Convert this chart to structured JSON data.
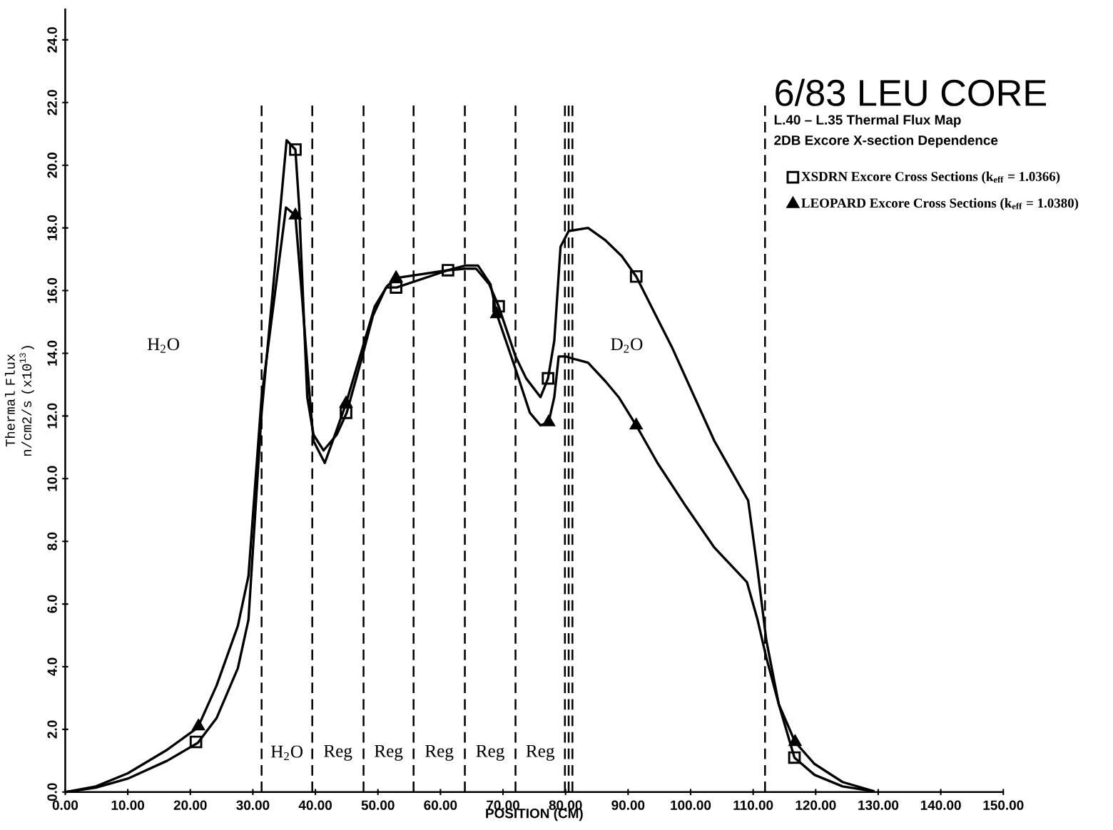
{
  "chart_data": {
    "type": "line",
    "title": "6/83 LEU CORE",
    "subtitle": "L.40 – L.35   Thermal Flux Map",
    "xlabel": "POSITION (CM)",
    "ylabel": "Thermal Flux n/cm2/s (x10$^{13}$)",
    "xlim": [
      0,
      150
    ],
    "ylim": [
      0,
      25
    ],
    "xticks": [
      {
        "value": 0,
        "label": "0.00"
      },
      {
        "value": 10,
        "label": "10.00"
      },
      {
        "value": 20,
        "label": "20.00"
      },
      {
        "value": 30,
        "label": "30.00"
      },
      {
        "value": 40,
        "label": "40.00"
      },
      {
        "value": 50,
        "label": "50.00"
      },
      {
        "value": 60,
        "label": "60.00"
      },
      {
        "value": 70,
        "label": "70.00"
      },
      {
        "value": 80,
        "label": "80.00"
      },
      {
        "value": 90,
        "label": "90.00"
      },
      {
        "value": 100,
        "label": "100.00"
      },
      {
        "value": 110,
        "label": "110.00"
      },
      {
        "value": 120,
        "label": "120.00"
      },
      {
        "value": 130,
        "label": "130.00"
      },
      {
        "value": 140,
        "label": "140.00"
      },
      {
        "value": 150,
        "label": "150.00"
      }
    ],
    "yticks": [
      {
        "value": 0,
        "label": "0.0"
      },
      {
        "value": 2,
        "label": "2.0"
      },
      {
        "value": 4,
        "label": "4.0"
      },
      {
        "value": 6,
        "label": "6.0"
      },
      {
        "value": 8,
        "label": "8.0"
      },
      {
        "value": 10,
        "label": "10.0"
      },
      {
        "value": 12,
        "label": "12.0"
      },
      {
        "value": 14,
        "label": "14.0"
      },
      {
        "value": 16,
        "label": "16.0"
      },
      {
        "value": 18,
        "label": "18.0"
      },
      {
        "value": 20,
        "label": "20.0"
      },
      {
        "value": 22,
        "label": "22.0"
      },
      {
        "value": 24,
        "label": "24.0"
      }
    ],
    "legend": "top right",
    "grid": false,
    "series": [
      {
        "type": "line",
        "marker": "none",
        "color": "#000000",
        "x": [
          0,
          4.9,
          10,
          16.3,
          21.2,
          24.2,
          27.6,
          29.3,
          31.4,
          35.4,
          36.8,
          37.4,
          38.7,
          39.7,
          41.3,
          43.4,
          45.0,
          47.5,
          49.2,
          51.3,
          53.0,
          61.2,
          64.0,
          65.7,
          67.8,
          69.3,
          72.0,
          73.7,
          76.0,
          77.2,
          78.2,
          79.2,
          80.5,
          83.6,
          86.4,
          89.0,
          91.3,
          94.2,
          97.0,
          103.8,
          109.2,
          110.7,
          112.1,
          114.1,
          116.6,
          119.8,
          124.3,
          129.4
        ],
        "values": [
          0,
          0.14,
          0.43,
          1.0,
          1.57,
          2.36,
          3.95,
          5.5,
          12.1,
          20.8,
          20.5,
          18.7,
          12.6,
          11.4,
          10.9,
          11.4,
          12.1,
          13.9,
          15.2,
          16.1,
          16.1,
          16.65,
          16.7,
          16.7,
          16.2,
          15.5,
          13.9,
          13.2,
          12.6,
          13.2,
          14.4,
          17.4,
          17.9,
          18.0,
          17.6,
          17.1,
          16.45,
          15.3,
          14.2,
          11.2,
          9.3,
          7.1,
          4.85,
          2.8,
          1.1,
          0.55,
          0.18,
          0.02
        ]
      },
      {
        "type": "line",
        "marker": "none",
        "color": "#000000",
        "x": [
          0,
          4.9,
          10,
          16.3,
          21.2,
          24.2,
          27.6,
          29.3,
          31.4,
          35.3,
          36.8,
          37.9,
          39.1,
          39.7,
          41.5,
          43.4,
          44.9,
          47.5,
          49.5,
          51.5,
          52.9,
          61.2,
          64.0,
          66.0,
          68.0,
          69.0,
          72.0,
          74.3,
          76.0,
          77.3,
          78.2,
          78.9,
          80.0,
          81.7,
          83.6,
          86.4,
          88.5,
          91.3,
          94.7,
          99.3,
          103.8,
          109.0,
          110.7,
          112.1,
          114.1,
          116.7,
          119.8,
          124.3,
          129.4
        ],
        "values": [
          0,
          0.18,
          0.6,
          1.35,
          2.06,
          3.4,
          5.3,
          6.9,
          12.6,
          18.65,
          18.4,
          15.7,
          12.6,
          11.2,
          10.5,
          11.55,
          12.4,
          14.15,
          15.5,
          16.15,
          16.4,
          16.65,
          16.8,
          16.8,
          16.2,
          15.25,
          13.5,
          12.1,
          11.7,
          11.8,
          12.6,
          13.9,
          13.9,
          13.8,
          13.7,
          13.1,
          12.6,
          11.7,
          10.5,
          9.1,
          7.8,
          6.7,
          5.5,
          4.3,
          2.8,
          1.6,
          0.9,
          0.32,
          0.02
        ]
      },
      {
        "type": "scatter",
        "marker": "square",
        "color": "#000000",
        "name": "XSDRN Excore Cross Sections (k$_{eff}$ = 1.0366)",
        "x": [
          20.9,
          36.8,
          44.9,
          52.9,
          61.2,
          69.3,
          77.2,
          91.3,
          116.6
        ],
        "values": [
          1.6,
          20.5,
          12.1,
          16.1,
          16.65,
          15.5,
          13.2,
          16.45,
          1.1
        ]
      },
      {
        "type": "scatter",
        "marker": "triangle",
        "color": "#000000",
        "name": "LEOPARD Excore Cross Sections (k$_{eff}$ = 1.0380)",
        "x": [
          21.3,
          36.8,
          44.9,
          52.9,
          69.0,
          77.3,
          91.3,
          116.7
        ],
        "values": [
          2.1,
          18.4,
          12.4,
          16.4,
          15.25,
          11.8,
          11.7,
          1.6
        ]
      }
    ],
    "ref_lines": [
      {
        "axis": "x",
        "value": 31.4,
        "line_style": "dashed",
        "color": "#000000"
      },
      {
        "axis": "x",
        "value": 39.5,
        "line_style": "dashed",
        "color": "#000000"
      },
      {
        "axis": "x",
        "value": 47.7,
        "line_style": "dashed",
        "color": "#000000"
      },
      {
        "axis": "x",
        "value": 55.7,
        "line_style": "dashed",
        "color": "#000000"
      },
      {
        "axis": "x",
        "value": 63.9,
        "line_style": "dashed",
        "color": "#000000"
      },
      {
        "axis": "x",
        "value": 72.0,
        "line_style": "dashed",
        "color": "#000000"
      },
      {
        "axis": "x",
        "value": 79.9,
        "line_style": "dashed",
        "color": "#000000"
      },
      {
        "axis": "x",
        "value": 80.5,
        "line_style": "dashed",
        "color": "#000000"
      },
      {
        "axis": "x",
        "value": 81.1,
        "line_style": "dashed",
        "color": "#000000"
      },
      {
        "axis": "x",
        "value": 111.9,
        "line_style": "dashed",
        "color": "#000000"
      }
    ],
    "annotations": [
      "2DB Excore X-section Dependence",
      "H$_{2}$O",
      "H$_{2}$O",
      "Reg",
      "Reg",
      "Reg",
      "Reg",
      "Reg",
      "D$_{2}$O"
    ]
  }
}
